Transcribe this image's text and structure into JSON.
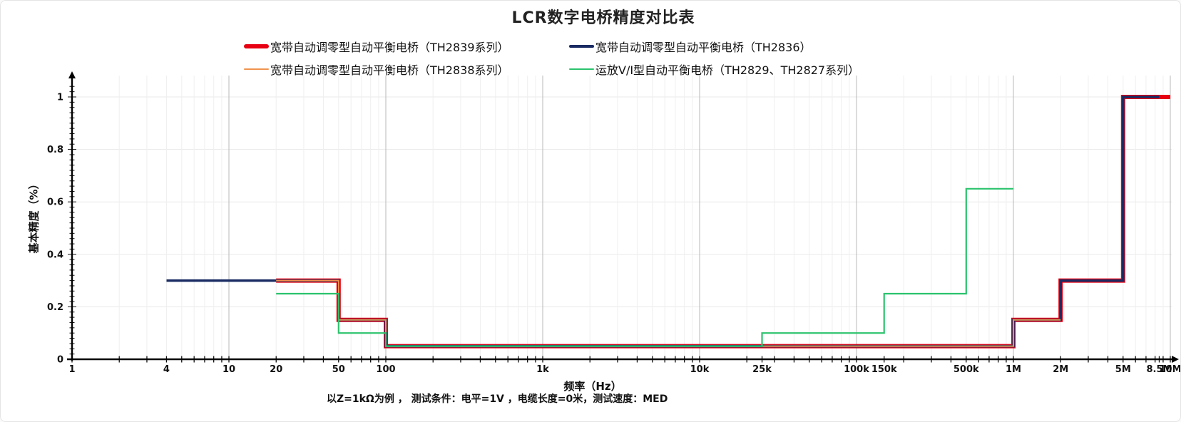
{
  "figure": {
    "title": "LCR数字电桥精度对比表",
    "footnote": "以Z=1kΩ为例 ， 测试条件：电平=1V ，电缆长度=0米，测试速度：MED"
  },
  "chart_data": {
    "type": "line",
    "title": "LCR数字电桥精度对比表",
    "xlabel": "频率（Hz）",
    "ylabel": "基本精度（%）",
    "x_scale": "log",
    "x_range": [
      1,
      10000000
    ],
    "y_range": [
      0,
      1.05
    ],
    "grid": true,
    "legend_position": "top",
    "x_ticks": [
      {
        "value": 1,
        "label": "1"
      },
      {
        "value": 4,
        "label": "4"
      },
      {
        "value": 10,
        "label": "10"
      },
      {
        "value": 20,
        "label": "20"
      },
      {
        "value": 50,
        "label": "50"
      },
      {
        "value": 100,
        "label": "100"
      },
      {
        "value": 1000,
        "label": "1k"
      },
      {
        "value": 10000,
        "label": "10k"
      },
      {
        "value": 25000,
        "label": "25k"
      },
      {
        "value": 100000,
        "label": "100k"
      },
      {
        "value": 150000,
        "label": "150k"
      },
      {
        "value": 500000,
        "label": "500k"
      },
      {
        "value": 1000000,
        "label": "1M"
      },
      {
        "value": 2000000,
        "label": "2M"
      },
      {
        "value": 5000000,
        "label": "5M"
      },
      {
        "value": 8500000,
        "label": "8.5M"
      },
      {
        "value": 10000000,
        "label": "10M"
      }
    ],
    "y_ticks": [
      {
        "value": 0,
        "label": "0"
      },
      {
        "value": 0.2,
        "label": "0.2"
      },
      {
        "value": 0.4,
        "label": "0.4"
      },
      {
        "value": 0.6,
        "label": "0.6"
      },
      {
        "value": 0.8,
        "label": "0.8"
      },
      {
        "value": 1,
        "label": "1"
      }
    ],
    "series": [
      {
        "name": "宽带自动调零型自动平衡电桥（TH2839系列）",
        "color": "#e60012",
        "stroke_width": 6,
        "points": [
          [
            20,
            0.3
          ],
          [
            50,
            0.3
          ],
          [
            50,
            0.15
          ],
          [
            100,
            0.15
          ],
          [
            100,
            0.05
          ],
          [
            1000000,
            0.05
          ],
          [
            1000000,
            0.15
          ],
          [
            2000000,
            0.15
          ],
          [
            2000000,
            0.3
          ],
          [
            5000000,
            0.3
          ],
          [
            5000000,
            1
          ],
          [
            10000000,
            1
          ]
        ]
      },
      {
        "name": "宽带自动调零型自动平衡电桥（TH2836）",
        "color": "#1a2b63",
        "stroke_width": 3.5,
        "points": [
          [
            4,
            0.3
          ],
          [
            50,
            0.3
          ],
          [
            50,
            0.15
          ],
          [
            100,
            0.15
          ],
          [
            100,
            0.05
          ],
          [
            1000000,
            0.05
          ],
          [
            1000000,
            0.15
          ],
          [
            2000000,
            0.15
          ],
          [
            2000000,
            0.3
          ],
          [
            5000000,
            0.3
          ],
          [
            5000000,
            1
          ],
          [
            8500000,
            1
          ]
        ]
      },
      {
        "name": "宽带自动调零型自动平衡电桥（TH2838系列）",
        "color": "#f0934e",
        "stroke_width": 2,
        "points": [
          [
            20,
            0.3
          ],
          [
            50,
            0.3
          ],
          [
            50,
            0.15
          ],
          [
            100,
            0.15
          ],
          [
            100,
            0.05
          ],
          [
            1000000,
            0.05
          ],
          [
            1000000,
            0.15
          ],
          [
            2000000,
            0.15
          ]
        ]
      },
      {
        "name": "运放V/I型自动平衡电桥（TH2829、TH2827系列）",
        "color": "#2bc36d",
        "stroke_width": 2.2,
        "points": [
          [
            20,
            0.25
          ],
          [
            50,
            0.25
          ],
          [
            50,
            0.1
          ],
          [
            100,
            0.1
          ],
          [
            100,
            0.05
          ],
          [
            25000,
            0.05
          ],
          [
            25000,
            0.1
          ],
          [
            150000,
            0.1
          ],
          [
            150000,
            0.25
          ],
          [
            500000,
            0.25
          ],
          [
            500000,
            0.65
          ],
          [
            1000000,
            0.65
          ]
        ]
      }
    ]
  }
}
